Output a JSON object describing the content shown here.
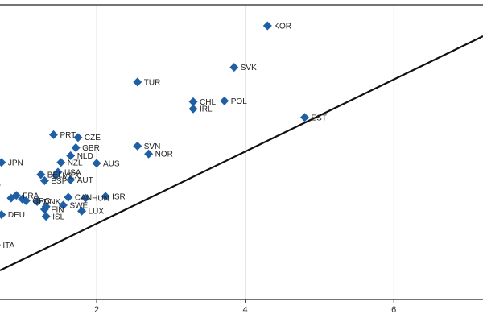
{
  "chart_data": {
    "type": "scatter",
    "title": "",
    "xlabel": "",
    "ylabel": "",
    "xlim": [
      0.7,
      7.2
    ],
    "ylim": [
      0,
      100
    ],
    "grid": true,
    "x_ticks": [
      2,
      4,
      6
    ],
    "x_tick_labels": [
      "2",
      "4",
      "6"
    ],
    "reference_line": {
      "kind": "45-degree line",
      "color": "#111111"
    },
    "marker_color": "#1f5fa6",
    "points": [
      {
        "label": "KOR",
        "x": 4.3,
        "y": 92.9
      },
      {
        "label": "SVK",
        "x": 3.85,
        "y": 78.8
      },
      {
        "label": "TUR",
        "x": 2.55,
        "y": 73.8
      },
      {
        "label": "POL",
        "x": 3.72,
        "y": 67.4
      },
      {
        "label": "CHL",
        "x": 3.3,
        "y": 67.1
      },
      {
        "label": "IRL",
        "x": 3.3,
        "y": 64.7
      },
      {
        "label": "EST",
        "x": 4.8,
        "y": 61.8
      },
      {
        "label": "PRT",
        "x": 1.42,
        "y": 55.9
      },
      {
        "label": "CZE",
        "x": 1.75,
        "y": 55.0
      },
      {
        "label": "SVN",
        "x": 2.55,
        "y": 52.1
      },
      {
        "label": "GBR",
        "x": 1.72,
        "y": 51.5
      },
      {
        "label": "NOR",
        "x": 2.7,
        "y": 49.4
      },
      {
        "label": "NLD",
        "x": 1.65,
        "y": 48.8
      },
      {
        "label": "JPN",
        "x": 0.72,
        "y": 46.5
      },
      {
        "label": "NZL",
        "x": 1.52,
        "y": 46.5
      },
      {
        "label": "AUS",
        "x": 2.0,
        "y": 46.2
      },
      {
        "label": "USA",
        "x": 1.48,
        "y": 43.2
      },
      {
        "label": "BEL",
        "x": 1.25,
        "y": 42.4
      },
      {
        "label": "MEX",
        "x": 1.45,
        "y": 42.1
      },
      {
        "label": "ESP",
        "x": 1.3,
        "y": 40.3
      },
      {
        "label": "AUT",
        "x": 1.65,
        "y": 40.6
      },
      {
        "label": "FRA",
        "x": 0.92,
        "y": 35.3
      },
      {
        "label": "CAN",
        "x": 1.62,
        "y": 34.7
      },
      {
        "label": "HUN",
        "x": 1.85,
        "y": 34.4
      },
      {
        "label": "ISR",
        "x": 2.12,
        "y": 35.0
      },
      {
        "label": "GRC",
        "x": 1.05,
        "y": 33.5
      },
      {
        "label": "DNK",
        "x": 1.2,
        "y": 33.2
      },
      {
        "label": "FIN",
        "x": 1.3,
        "y": 30.6
      },
      {
        "label": "SWE",
        "x": 1.55,
        "y": 32.0
      },
      {
        "label": "LUX",
        "x": 1.8,
        "y": 30.0
      },
      {
        "label": "DEU",
        "x": 0.72,
        "y": 28.8
      },
      {
        "label": "ISL",
        "x": 1.32,
        "y": 28.2
      },
      {
        "label": "ITA",
        "x": 0.65,
        "y": 18.5
      },
      {
        "label": "",
        "x": 0.65,
        "y": 38.8
      },
      {
        "label": "",
        "x": 0.85,
        "y": 34.4
      },
      {
        "label": "",
        "x": 1.0,
        "y": 34.1
      },
      {
        "label": "",
        "x": 1.32,
        "y": 31.5
      }
    ]
  }
}
